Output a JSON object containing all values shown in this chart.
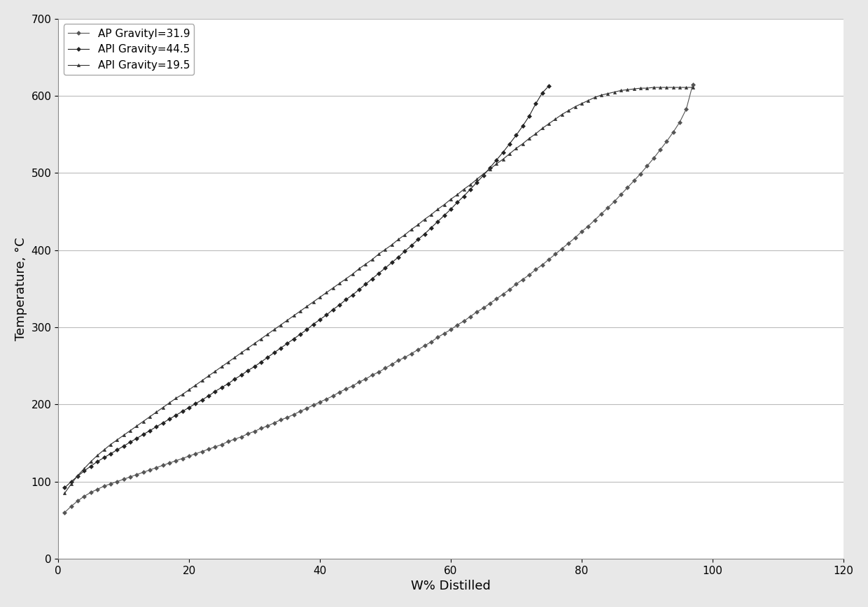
{
  "title": "",
  "xlabel": "W% Distilled",
  "ylabel": "Temperature, °C",
  "xlim": [
    0,
    120
  ],
  "ylim": [
    0,
    700
  ],
  "xticks": [
    0,
    20,
    40,
    60,
    80,
    100,
    120
  ],
  "yticks": [
    0,
    100,
    200,
    300,
    400,
    500,
    600,
    700
  ],
  "series": [
    {
      "label": "AP GravityI=31.9",
      "color": "#555555",
      "marker": "D",
      "markersize": 3,
      "linewidth": 0.8,
      "x": [
        1,
        2,
        3,
        4,
        5,
        6,
        7,
        8,
        9,
        10,
        11,
        12,
        13,
        14,
        15,
        16,
        17,
        18,
        19,
        20,
        21,
        22,
        23,
        24,
        25,
        26,
        27,
        28,
        29,
        30,
        31,
        32,
        33,
        34,
        35,
        36,
        37,
        38,
        39,
        40,
        41,
        42,
        43,
        44,
        45,
        46,
        47,
        48,
        49,
        50,
        51,
        52,
        53,
        54,
        55,
        56,
        57,
        58,
        59,
        60,
        61,
        62,
        63,
        64,
        65,
        66,
        67,
        68,
        69,
        70,
        71,
        72,
        73,
        74,
        75,
        76,
        77,
        78,
        79,
        80,
        81,
        82,
        83,
        84,
        85,
        86,
        87,
        88,
        89,
        90,
        91,
        92,
        93,
        94,
        95,
        96,
        97
      ],
      "y": [
        60,
        68,
        75,
        81,
        86,
        90,
        94,
        97,
        100,
        103,
        106,
        109,
        112,
        115,
        118,
        121,
        124,
        127,
        130,
        133,
        136,
        139,
        142,
        145,
        148,
        152,
        155,
        158,
        162,
        165,
        169,
        172,
        176,
        180,
        183,
        187,
        191,
        195,
        199,
        203,
        207,
        211,
        216,
        220,
        224,
        229,
        233,
        238,
        242,
        247,
        252,
        257,
        261,
        266,
        271,
        276,
        281,
        287,
        292,
        297,
        303,
        308,
        314,
        320,
        325,
        331,
        337,
        343,
        349,
        356,
        362,
        368,
        375,
        381,
        388,
        395,
        402,
        409,
        416,
        424,
        431,
        439,
        447,
        455,
        463,
        472,
        481,
        490,
        499,
        509,
        519,
        530,
        541,
        553,
        566,
        583,
        615
      ]
    },
    {
      "label": "API Gravity=44.5",
      "color": "#222222",
      "marker": "D",
      "markersize": 3,
      "linewidth": 0.8,
      "x": [
        1,
        2,
        3,
        4,
        5,
        6,
        7,
        8,
        9,
        10,
        11,
        12,
        13,
        14,
        15,
        16,
        17,
        18,
        19,
        20,
        21,
        22,
        23,
        24,
        25,
        26,
        27,
        28,
        29,
        30,
        31,
        32,
        33,
        34,
        35,
        36,
        37,
        38,
        39,
        40,
        41,
        42,
        43,
        44,
        45,
        46,
        47,
        48,
        49,
        50,
        51,
        52,
        53,
        54,
        55,
        56,
        57,
        58,
        59,
        60,
        61,
        62,
        63,
        64,
        65,
        66,
        67,
        68,
        69,
        70,
        71,
        72,
        73,
        74,
        75
      ],
      "y": [
        92,
        100,
        107,
        114,
        120,
        126,
        131,
        136,
        141,
        146,
        151,
        156,
        161,
        166,
        171,
        176,
        181,
        186,
        191,
        196,
        201,
        206,
        211,
        217,
        222,
        227,
        233,
        238,
        244,
        249,
        255,
        261,
        267,
        273,
        279,
        285,
        291,
        297,
        304,
        310,
        316,
        323,
        329,
        336,
        342,
        349,
        356,
        363,
        370,
        377,
        384,
        391,
        399,
        406,
        414,
        421,
        429,
        437,
        445,
        453,
        462,
        470,
        479,
        488,
        497,
        507,
        517,
        527,
        538,
        549,
        561,
        574,
        590,
        604,
        613
      ]
    },
    {
      "label": "API Gravity=19.5",
      "color": "#333333",
      "marker": "^",
      "markersize": 3,
      "linewidth": 0.8,
      "x": [
        1,
        2,
        3,
        4,
        5,
        6,
        7,
        8,
        9,
        10,
        11,
        12,
        13,
        14,
        15,
        16,
        17,
        18,
        19,
        20,
        21,
        22,
        23,
        24,
        25,
        26,
        27,
        28,
        29,
        30,
        31,
        32,
        33,
        34,
        35,
        36,
        37,
        38,
        39,
        40,
        41,
        42,
        43,
        44,
        45,
        46,
        47,
        48,
        49,
        50,
        51,
        52,
        53,
        54,
        55,
        56,
        57,
        58,
        59,
        60,
        61,
        62,
        63,
        64,
        65,
        66,
        67,
        68,
        69,
        70,
        71,
        72,
        73,
        74,
        75,
        76,
        77,
        78,
        79,
        80,
        81,
        82,
        83,
        84,
        85,
        86,
        87,
        88,
        89,
        90,
        91,
        92,
        93,
        94,
        95,
        96,
        97
      ],
      "y": [
        85,
        97,
        108,
        117,
        126,
        134,
        141,
        148,
        154,
        160,
        166,
        172,
        178,
        184,
        190,
        196,
        202,
        208,
        213,
        219,
        225,
        231,
        237,
        243,
        249,
        255,
        261,
        267,
        273,
        279,
        285,
        291,
        297,
        303,
        309,
        315,
        321,
        327,
        333,
        339,
        345,
        351,
        357,
        363,
        369,
        376,
        382,
        388,
        395,
        401,
        407,
        414,
        420,
        427,
        433,
        440,
        446,
        453,
        459,
        466,
        472,
        479,
        485,
        492,
        499,
        505,
        512,
        518,
        525,
        532,
        538,
        545,
        551,
        558,
        564,
        570,
        576,
        581,
        586,
        590,
        594,
        598,
        601,
        603,
        605,
        607,
        608,
        609,
        610,
        610,
        611,
        611,
        611,
        611,
        611,
        611,
        611
      ]
    }
  ],
  "legend_loc": "upper left",
  "grid_color": "#bbbbbb",
  "background_color": "#ffffff",
  "figure_background": "#e8e8e8"
}
